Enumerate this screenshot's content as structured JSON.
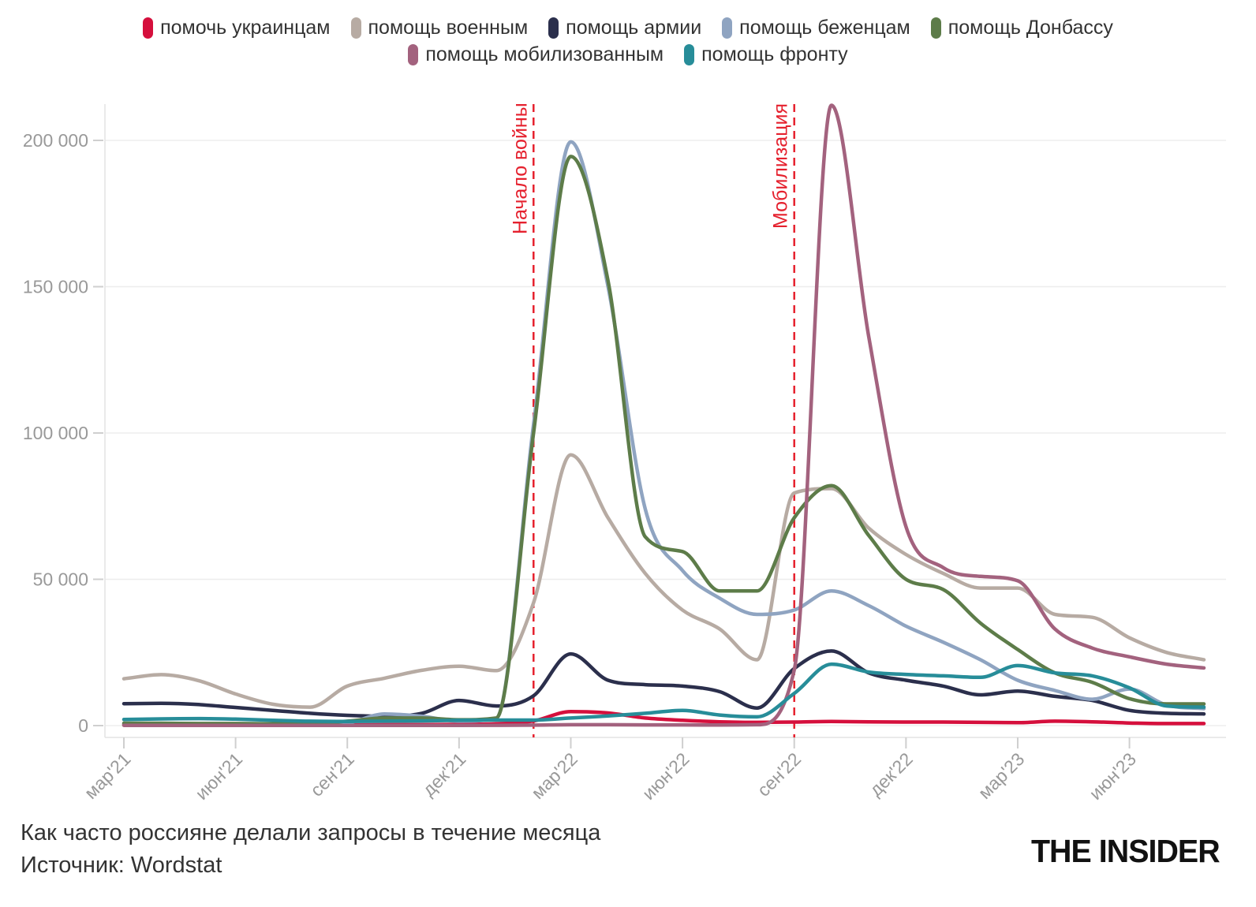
{
  "legend": {
    "rows": [
      5,
      2
    ],
    "items": [
      {
        "id": "ukraintsam",
        "label": "помочь украинцам",
        "color": "#d50f3c"
      },
      {
        "id": "voennym",
        "label": "помощь военным",
        "color": "#b7aba3"
      },
      {
        "id": "armii",
        "label": "помощь армии",
        "color": "#2b2f4c"
      },
      {
        "id": "bezhentsam",
        "label": "помощь беженцам",
        "color": "#8fa4c1"
      },
      {
        "id": "donbassu",
        "label": "помощь Донбассу",
        "color": "#5d7c49"
      },
      {
        "id": "mobilizovannym",
        "label": "помощь мобилизованным",
        "color": "#a3627e"
      },
      {
        "id": "frontu",
        "label": "помощь фронту",
        "color": "#278d99"
      }
    ]
  },
  "chart_data": {
    "type": "line",
    "title": "Как часто россияне делали запросы в течение месяца",
    "x_months": [
      "мар'21",
      "апр'21",
      "май'21",
      "июн'21",
      "июл'21",
      "авг'21",
      "сен'21",
      "окт'21",
      "ноя'21",
      "дек'21",
      "янв'22",
      "фев'22",
      "мар'22",
      "апр'22",
      "май'22",
      "июн'22",
      "июл'22",
      "авг'22",
      "сен'22",
      "окт'22",
      "ноя'22",
      "дек'22",
      "янв'23",
      "фев'23",
      "мар'23",
      "апр'23",
      "май'23",
      "июн'23",
      "июл'23",
      "авг'23"
    ],
    "x_tick_labels": [
      {
        "index": 0,
        "label": "мар'21"
      },
      {
        "index": 3,
        "label": "июн'21"
      },
      {
        "index": 6,
        "label": "сен'21"
      },
      {
        "index": 9,
        "label": "дек'21"
      },
      {
        "index": 12,
        "label": "мар'22"
      },
      {
        "index": 15,
        "label": "июн'22"
      },
      {
        "index": 18,
        "label": "сен'22"
      },
      {
        "index": 21,
        "label": "дек'22"
      },
      {
        "index": 24,
        "label": "мар'23"
      },
      {
        "index": 27,
        "label": "июн'23"
      }
    ],
    "y_ticks": [
      {
        "value": 0,
        "label": "0"
      },
      {
        "value": 50000,
        "label": "50 000"
      },
      {
        "value": 100000,
        "label": "100 000"
      },
      {
        "value": 150000,
        "label": "150 000"
      },
      {
        "value": 200000,
        "label": "200 000"
      }
    ],
    "ylim": [
      0,
      215000
    ],
    "grid": "horizontal",
    "legend_position": "top",
    "annotations": [
      {
        "id": "war",
        "label": "Начало войны",
        "month_index": 11,
        "color": "#e5212e"
      },
      {
        "id": "mobilization",
        "label": "Мобилизация",
        "month_index": 18,
        "color": "#e5212e"
      }
    ],
    "series": [
      {
        "id": "ukraintsam",
        "name": "помочь украинцам",
        "color": "#d50f3c",
        "values": [
          300,
          450,
          400,
          300,
          250,
          250,
          250,
          300,
          300,
          400,
          600,
          1600,
          4800,
          4300,
          2600,
          1800,
          1300,
          1100,
          1200,
          1400,
          1300,
          1200,
          1200,
          1100,
          1000,
          1500,
          1300,
          900,
          700,
          700
        ]
      },
      {
        "id": "voennym",
        "name": "помощь военным",
        "color": "#b7aba3",
        "values": [
          16000,
          17400,
          15400,
          10800,
          7300,
          6300,
          13500,
          16200,
          18900,
          20300,
          18800,
          42000,
          92500,
          71000,
          52000,
          39500,
          33000,
          22500,
          79500,
          81000,
          67500,
          58500,
          52000,
          47000,
          47000,
          38000,
          37000,
          30000,
          25000,
          22500
        ]
      },
      {
        "id": "armii",
        "name": "помощь армии",
        "color": "#2b2f4c",
        "values": [
          7500,
          7600,
          7200,
          6200,
          5200,
          4200,
          3500,
          3200,
          4200,
          8600,
          6700,
          10200,
          24500,
          15500,
          14000,
          13500,
          11600,
          6000,
          19500,
          25500,
          18000,
          15500,
          13500,
          10500,
          11800,
          10000,
          8600,
          5200,
          4200,
          4000
        ]
      },
      {
        "id": "bezhentsam",
        "name": "помощь беженцам",
        "color": "#8fa4c1",
        "values": [
          500,
          500,
          500,
          450,
          400,
          400,
          900,
          4000,
          3200,
          1500,
          2500,
          103000,
          199500,
          150000,
          74000,
          53000,
          43500,
          38000,
          39500,
          46000,
          41000,
          34000,
          28500,
          22500,
          15500,
          12000,
          9000,
          12500,
          7000,
          5800
        ]
      },
      {
        "id": "donbassu",
        "name": "помощь Донбассу",
        "color": "#5d7c49",
        "values": [
          800,
          800,
          700,
          700,
          600,
          700,
          1500,
          2600,
          2600,
          2000,
          2600,
          100000,
          194500,
          152000,
          64500,
          59500,
          46000,
          46000,
          71000,
          82000,
          65000,
          50000,
          46500,
          35000,
          26000,
          18000,
          14800,
          9200,
          7400,
          7400
        ]
      },
      {
        "id": "mobilizovannym",
        "name": "помощь мобилизованным",
        "color": "#a3627e",
        "values": [
          80,
          80,
          80,
          80,
          80,
          80,
          80,
          80,
          80,
          80,
          100,
          150,
          300,
          300,
          250,
          250,
          200,
          300,
          19000,
          212000,
          133000,
          68000,
          54000,
          51000,
          49500,
          33000,
          26500,
          23500,
          21000,
          19700
        ]
      },
      {
        "id": "frontu",
        "name": "помощь фронту",
        "color": "#278d99",
        "values": [
          2100,
          2300,
          2400,
          2200,
          1800,
          1500,
          1400,
          1500,
          1600,
          1800,
          1900,
          1900,
          2600,
          3300,
          4200,
          5200,
          3600,
          3000,
          11000,
          21000,
          18300,
          17500,
          17000,
          16500,
          20500,
          18000,
          17000,
          12900,
          6700,
          6300
        ]
      }
    ]
  },
  "footer": {
    "title": "Как часто россияне делали запросы в течение месяца",
    "source": "Источник: Wordstat",
    "brand": "THE INSIDER"
  }
}
